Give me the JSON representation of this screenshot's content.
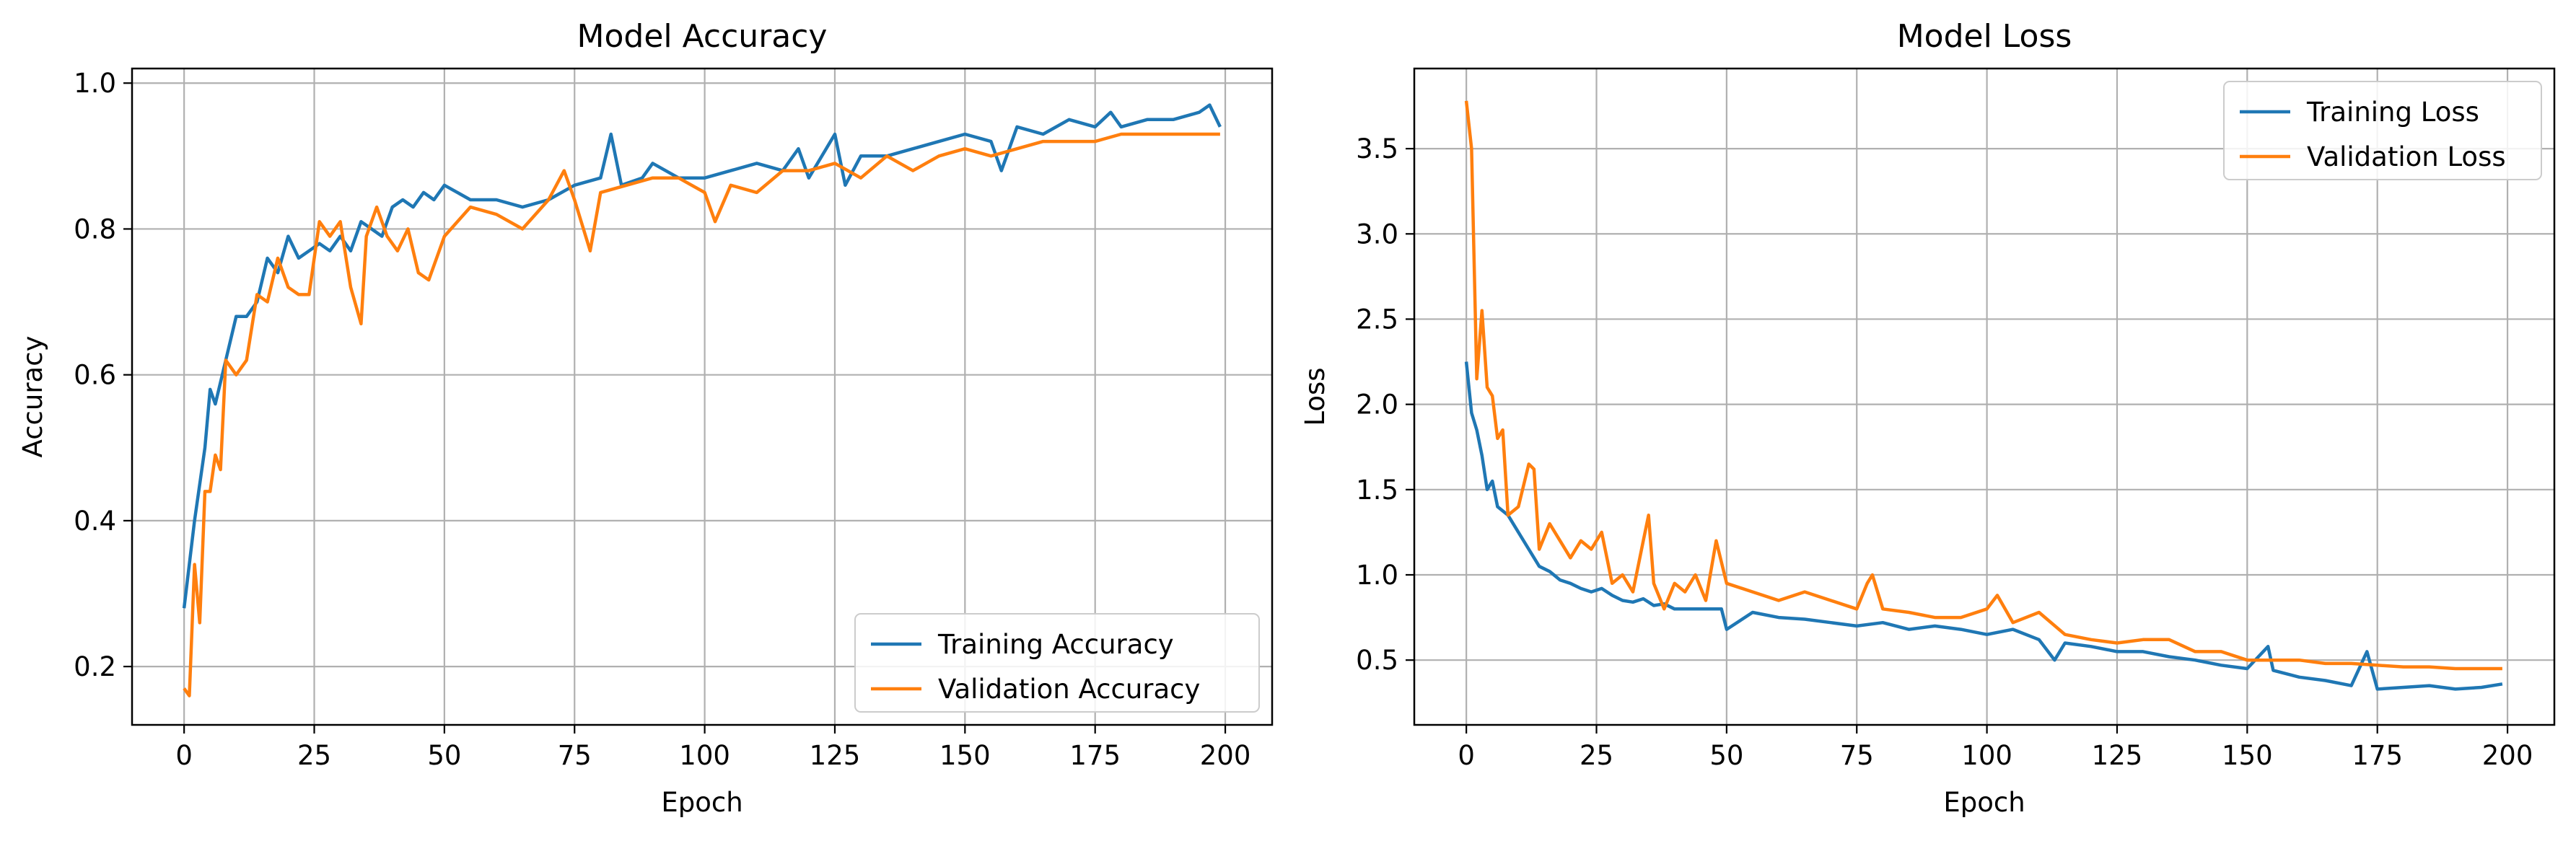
{
  "colors": {
    "training": "#1f77b4",
    "validation": "#ff7f0e",
    "grid": "#b0b0b0"
  },
  "chart_data": [
    {
      "type": "line",
      "title": "Model Accuracy",
      "xlabel": "Epoch",
      "ylabel": "Accuracy",
      "xlim": [
        -10,
        209
      ],
      "ylim": [
        0.12,
        1.02
      ],
      "xticks": [
        0,
        25,
        50,
        75,
        100,
        125,
        150,
        175,
        200
      ],
      "yticks": [
        0.2,
        0.4,
        0.6,
        0.8,
        1.0
      ],
      "ytick_labels": [
        "0.2",
        "0.4",
        "0.6",
        "0.8",
        "1.0"
      ],
      "grid": true,
      "legend_position": "bottom-right",
      "series": [
        {
          "name": "Training Accuracy",
          "color": "#1f77b4",
          "x": [
            0,
            2,
            4,
            5,
            6,
            8,
            10,
            12,
            14,
            16,
            18,
            20,
            22,
            24,
            26,
            28,
            30,
            32,
            34,
            36,
            38,
            40,
            42,
            44,
            46,
            48,
            50,
            55,
            60,
            65,
            70,
            75,
            80,
            82,
            84,
            88,
            90,
            95,
            100,
            105,
            110,
            115,
            118,
            120,
            125,
            127,
            130,
            135,
            140,
            145,
            150,
            155,
            157,
            160,
            165,
            170,
            175,
            178,
            180,
            185,
            190,
            195,
            197,
            199
          ],
          "y": [
            0.28,
            0.4,
            0.5,
            0.58,
            0.56,
            0.62,
            0.68,
            0.68,
            0.7,
            0.76,
            0.74,
            0.79,
            0.76,
            0.77,
            0.78,
            0.77,
            0.79,
            0.77,
            0.81,
            0.8,
            0.79,
            0.83,
            0.84,
            0.83,
            0.85,
            0.84,
            0.86,
            0.84,
            0.84,
            0.83,
            0.84,
            0.86,
            0.87,
            0.93,
            0.86,
            0.87,
            0.89,
            0.87,
            0.87,
            0.88,
            0.89,
            0.88,
            0.91,
            0.87,
            0.93,
            0.86,
            0.9,
            0.9,
            0.91,
            0.92,
            0.93,
            0.92,
            0.88,
            0.94,
            0.93,
            0.95,
            0.94,
            0.96,
            0.94,
            0.95,
            0.95,
            0.96,
            0.97,
            0.94
          ]
        },
        {
          "name": "Validation Accuracy",
          "color": "#ff7f0e",
          "x": [
            0,
            1,
            2,
            3,
            4,
            5,
            6,
            7,
            8,
            10,
            12,
            14,
            16,
            18,
            20,
            22,
            24,
            26,
            28,
            30,
            32,
            34,
            35,
            37,
            39,
            41,
            43,
            45,
            47,
            50,
            55,
            60,
            65,
            70,
            73,
            75,
            78,
            80,
            85,
            90,
            95,
            100,
            102,
            105,
            110,
            115,
            120,
            125,
            130,
            135,
            140,
            145,
            150,
            155,
            160,
            165,
            170,
            175,
            180,
            185,
            190,
            195,
            199
          ],
          "y": [
            0.17,
            0.16,
            0.34,
            0.26,
            0.44,
            0.44,
            0.49,
            0.47,
            0.62,
            0.6,
            0.62,
            0.71,
            0.7,
            0.76,
            0.72,
            0.71,
            0.71,
            0.81,
            0.79,
            0.81,
            0.72,
            0.67,
            0.79,
            0.83,
            0.79,
            0.77,
            0.8,
            0.74,
            0.73,
            0.79,
            0.83,
            0.82,
            0.8,
            0.84,
            0.88,
            0.84,
            0.77,
            0.85,
            0.86,
            0.87,
            0.87,
            0.85,
            0.81,
            0.86,
            0.85,
            0.88,
            0.88,
            0.89,
            0.87,
            0.9,
            0.88,
            0.9,
            0.91,
            0.9,
            0.91,
            0.92,
            0.92,
            0.92,
            0.93,
            0.93,
            0.93,
            0.93,
            0.93
          ]
        }
      ]
    },
    {
      "type": "line",
      "title": "Model Loss",
      "xlabel": "Epoch",
      "ylabel": "Loss",
      "xlim": [
        -10,
        209
      ],
      "ylim": [
        0.12,
        3.97
      ],
      "xticks": [
        0,
        25,
        50,
        75,
        100,
        125,
        150,
        175,
        200
      ],
      "yticks": [
        0.5,
        1.0,
        1.5,
        2.0,
        2.5,
        3.0,
        3.5
      ],
      "ytick_labels": [
        "0.5",
        "1.0",
        "1.5",
        "2.0",
        "2.5",
        "3.0",
        "3.5"
      ],
      "grid": true,
      "legend_position": "top-right",
      "series": [
        {
          "name": "Training Loss",
          "color": "#1f77b4",
          "x": [
            0,
            1,
            2,
            3,
            4,
            5,
            6,
            8,
            10,
            12,
            14,
            16,
            18,
            20,
            22,
            24,
            26,
            28,
            30,
            32,
            34,
            36,
            38,
            40,
            45,
            49,
            50,
            55,
            60,
            65,
            70,
            75,
            80,
            85,
            90,
            95,
            100,
            105,
            110,
            113,
            115,
            120,
            125,
            130,
            135,
            140,
            145,
            150,
            154,
            155,
            160,
            165,
            170,
            173,
            175,
            180,
            185,
            190,
            195,
            199
          ],
          "y": [
            2.25,
            1.95,
            1.85,
            1.7,
            1.5,
            1.55,
            1.4,
            1.35,
            1.25,
            1.15,
            1.05,
            1.02,
            0.97,
            0.95,
            0.92,
            0.9,
            0.92,
            0.88,
            0.85,
            0.84,
            0.86,
            0.82,
            0.83,
            0.8,
            0.8,
            0.8,
            0.68,
            0.78,
            0.75,
            0.74,
            0.72,
            0.7,
            0.72,
            0.68,
            0.7,
            0.68,
            0.65,
            0.68,
            0.62,
            0.5,
            0.6,
            0.58,
            0.55,
            0.55,
            0.52,
            0.5,
            0.47,
            0.45,
            0.58,
            0.44,
            0.4,
            0.38,
            0.35,
            0.55,
            0.33,
            0.34,
            0.35,
            0.33,
            0.34,
            0.36
          ]
        },
        {
          "name": "Validation Loss",
          "color": "#ff7f0e",
          "x": [
            0,
            1,
            2,
            3,
            4,
            5,
            6,
            7,
            8,
            10,
            12,
            13,
            14,
            16,
            18,
            20,
            22,
            24,
            26,
            28,
            30,
            32,
            34,
            35,
            36,
            38,
            40,
            42,
            44,
            46,
            48,
            50,
            55,
            60,
            65,
            70,
            75,
            77,
            78,
            80,
            85,
            90,
            95,
            100,
            102,
            105,
            110,
            115,
            120,
            125,
            130,
            135,
            140,
            145,
            150,
            155,
            160,
            165,
            170,
            175,
            180,
            185,
            190,
            195,
            199
          ],
          "y": [
            3.78,
            3.5,
            2.15,
            2.55,
            2.1,
            2.05,
            1.8,
            1.85,
            1.35,
            1.4,
            1.65,
            1.62,
            1.15,
            1.3,
            1.2,
            1.1,
            1.2,
            1.15,
            1.25,
            0.95,
            1.0,
            0.9,
            1.2,
            1.35,
            0.95,
            0.8,
            0.95,
            0.9,
            1.0,
            0.85,
            1.2,
            0.95,
            0.9,
            0.85,
            0.9,
            0.85,
            0.8,
            0.95,
            1.0,
            0.8,
            0.78,
            0.75,
            0.75,
            0.8,
            0.88,
            0.72,
            0.78,
            0.65,
            0.62,
            0.6,
            0.62,
            0.62,
            0.55,
            0.55,
            0.5,
            0.5,
            0.5,
            0.48,
            0.48,
            0.47,
            0.46,
            0.46,
            0.45,
            0.45,
            0.45
          ]
        }
      ]
    }
  ]
}
